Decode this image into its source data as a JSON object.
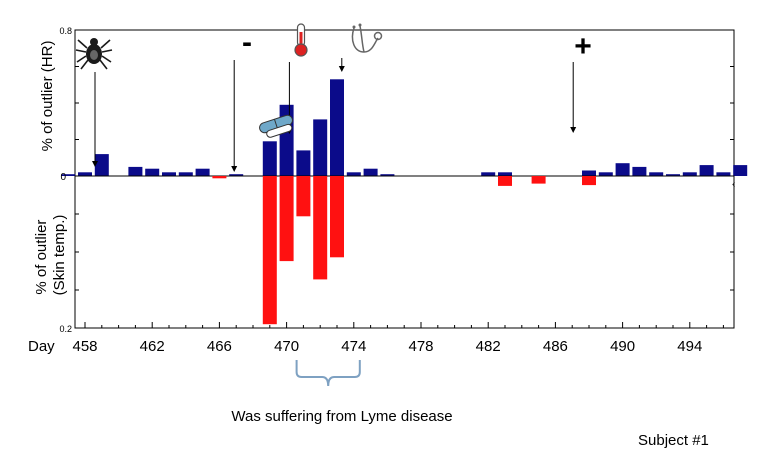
{
  "chart_data": [
    {
      "type": "bar",
      "panel": "top",
      "ylabel": "% of outlier (HR)",
      "ylim": [
        0,
        0.8
      ],
      "y_tick_labels": [
        "0.8",
        "0"
      ],
      "x_start_day": 457,
      "day_step": 1,
      "values": [
        0.01,
        0.02,
        0.12,
        0.0,
        0.05,
        0.04,
        0.02,
        0.02,
        0.04,
        0.0,
        0.01,
        0.0,
        0.19,
        0.39,
        0.14,
        0.31,
        0.53,
        0.02,
        0.04,
        0.01,
        0.0,
        0.0,
        0.0,
        0.0,
        0.0,
        0.02,
        0.02,
        0.0,
        0.0,
        0.0,
        0.0,
        0.03,
        0.02,
        0.07,
        0.05,
        0.02,
        0.01,
        0.02,
        0.06,
        0.02,
        0.06
      ],
      "color": "#0b0b8a"
    },
    {
      "type": "bar",
      "panel": "bottom",
      "ylabel_line1": "% of outlier",
      "ylabel_line2": "(Skin temp.)",
      "ylim": [
        0,
        0.2
      ],
      "y_tick_labels": [
        "0.2"
      ],
      "x_start_day": 457,
      "day_step": 1,
      "values": [
        0.0,
        0.0,
        0.0,
        0.0,
        0.0,
        0.0,
        0.0,
        0.0,
        0.0,
        0.003,
        0.0,
        0.0,
        0.195,
        0.112,
        0.053,
        0.136,
        0.107,
        0.0,
        0.0,
        0.0,
        0.0,
        0.0,
        0.0,
        0.0,
        0.0,
        0.0,
        0.013,
        0.0,
        0.01,
        0.0,
        0.0,
        0.012,
        0.0,
        0.0,
        0.0,
        0.0,
        0.0,
        0.0,
        0.0,
        0.0,
        0.0
      ],
      "color": "#ff1111"
    }
  ],
  "x_axis": {
    "prefix_label": "Day",
    "tick_values": [
      458,
      462,
      466,
      470,
      474,
      478,
      482,
      486,
      490,
      494
    ],
    "tick_labels": [
      "458",
      "462",
      "466",
      "470",
      "474",
      "478",
      "482",
      "486",
      "490",
      "494"
    ]
  },
  "annotations": {
    "minus_symbol": "-",
    "plus_symbol": "+",
    "bracket_caption": "Was suffering from Lyme disease",
    "bracket_from_day": 470,
    "bracket_to_day": 474,
    "tick_marker_day": 458,
    "minus_marker_day": 467,
    "thermometer_marker_day": 471,
    "stethoscope_marker_day": 474,
    "plus_marker_day": 487
  },
  "footer": {
    "subject_label": "Subject #1"
  },
  "icons": [
    "tick-icon",
    "thermometer-icon",
    "stethoscope-icon",
    "pills-icon"
  ]
}
